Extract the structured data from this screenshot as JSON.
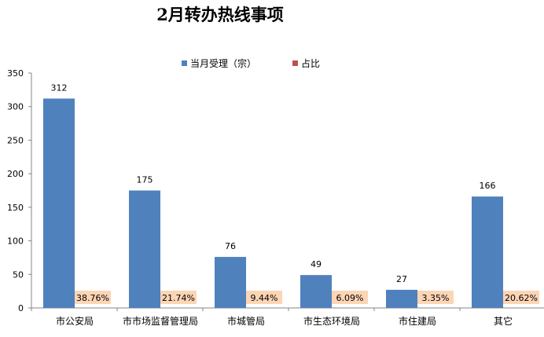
{
  "chart_data": {
    "type": "bar",
    "title": "2月转办热线事项",
    "categories": [
      "市公安局",
      "市市场监督管理局",
      "市城管局",
      "市生态环境局",
      "市住建局",
      "其它"
    ],
    "series": [
      {
        "name": "当月受理（宗）",
        "values": [
          312,
          175,
          76,
          49,
          27,
          166
        ],
        "color": "#4f81bd"
      },
      {
        "name": "占比",
        "values": [
          "38.76%",
          "21.74%",
          "9.44%",
          "6.09%",
          "3.35%",
          "20.62%"
        ],
        "color": "#c0504d"
      }
    ],
    "percent_label_bg": "#fcd5b5",
    "ylim": [
      0,
      350
    ],
    "yticks": [
      0,
      50,
      100,
      150,
      200,
      250,
      300,
      350
    ],
    "grid": false,
    "legend_position": "top"
  }
}
